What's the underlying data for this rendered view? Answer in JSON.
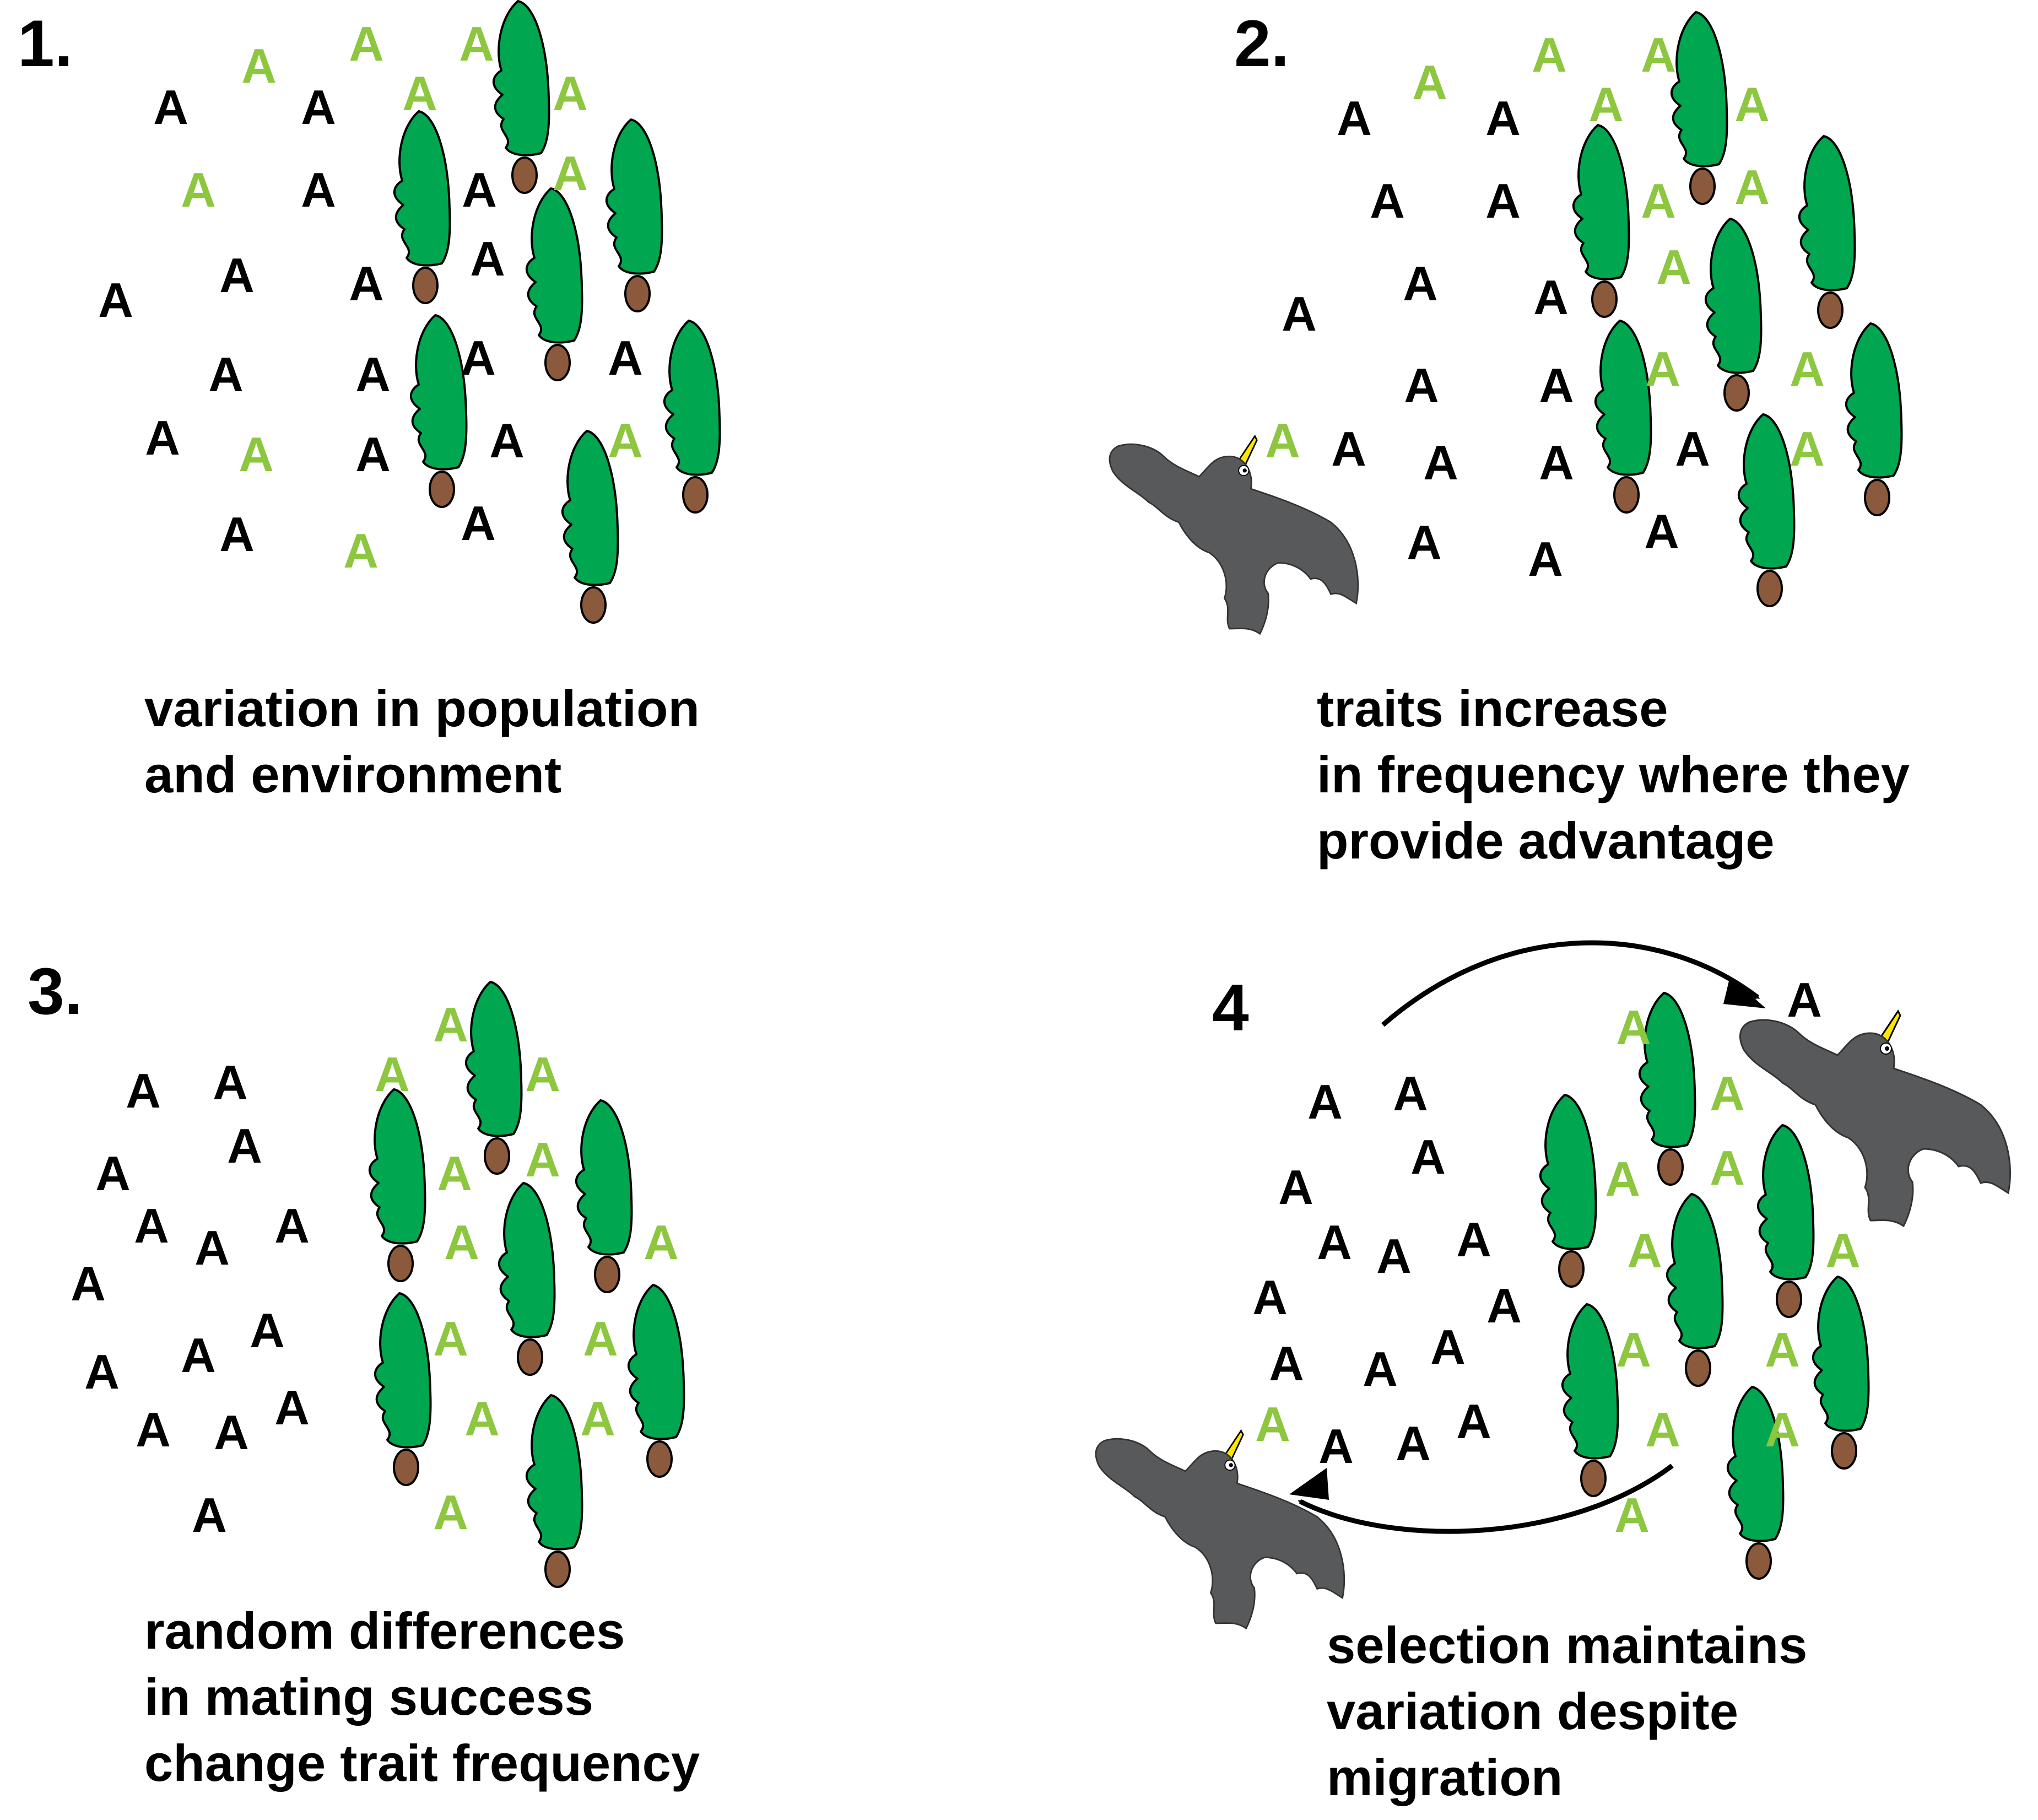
{
  "colors": {
    "dark_individual": "#000000",
    "light_individual": "#8DC63F",
    "tree_canopy": "#00A650",
    "tree_trunk": "#8B5A3C",
    "bird": "#58595B",
    "beak": "#FFE600"
  },
  "icons": [
    "tree-icon",
    "bird-icon",
    "arrow-icon"
  ],
  "individual_glyph": "A",
  "panels": [
    {
      "label": "1.",
      "caption": [
        "variation in population",
        "and environment"
      ]
    },
    {
      "label": "2.",
      "caption": [
        "traits increase",
        "in frequency where they",
        "provide advantage"
      ]
    },
    {
      "label": "3.",
      "caption": [
        "random differences",
        "in mating success",
        "change trait frequency"
      ]
    },
    {
      "label": "4",
      "caption": [
        "selection maintains",
        "variation despite",
        "migration"
      ]
    }
  ]
}
